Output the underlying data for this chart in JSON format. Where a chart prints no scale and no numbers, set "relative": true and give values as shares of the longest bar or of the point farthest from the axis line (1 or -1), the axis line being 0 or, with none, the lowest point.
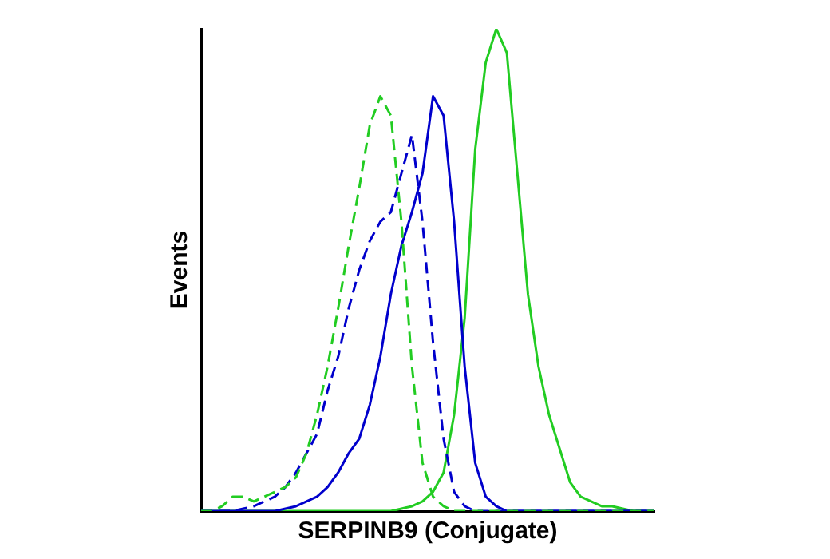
{
  "chart_data": {
    "type": "line",
    "relative": true,
    "xlabel": "SERPINB9 (Conjugate)",
    "ylabel": "Events",
    "categories": [
      null,
      null,
      null,
      null,
      null,
      null,
      null,
      null,
      null,
      null,
      null,
      null,
      null,
      null,
      null,
      null,
      null,
      null,
      null,
      null,
      null,
      null,
      null,
      null,
      null,
      null,
      null,
      null,
      null,
      null,
      null,
      null,
      null,
      null,
      null,
      null,
      null,
      null,
      null,
      null,
      null,
      null,
      null,
      null
    ],
    "grid": false,
    "legend": false,
    "marker": "none",
    "series": [
      {
        "color": "#22cc22",
        "line_style": "dashed",
        "values": [
          0,
          0,
          0.01,
          0.03,
          0.03,
          0.02,
          0.03,
          0.04,
          0.05,
          0.07,
          0.12,
          0.2,
          0.3,
          0.42,
          0.55,
          0.67,
          0.8,
          0.86,
          0.82,
          0.6,
          0.3,
          0.1,
          0.03,
          0.01,
          0,
          0,
          0,
          0,
          0,
          0,
          0,
          0,
          0,
          0,
          0,
          0,
          0,
          0,
          0,
          0,
          0,
          0,
          0,
          0
        ]
      },
      {
        "color": "#0000cc",
        "line_style": "dashed",
        "values": [
          0,
          0,
          0,
          0,
          0.005,
          0.01,
          0.02,
          0.03,
          0.05,
          0.08,
          0.12,
          0.16,
          0.25,
          0.32,
          0.42,
          0.5,
          0.56,
          0.6,
          0.62,
          0.7,
          0.78,
          0.6,
          0.35,
          0.15,
          0.04,
          0.01,
          0,
          0,
          0,
          0,
          0,
          0,
          0,
          0,
          0,
          0,
          0,
          0,
          0,
          0,
          0,
          0,
          0,
          0
        ]
      },
      {
        "color": "#0000cc",
        "line_style": "solid",
        "values": [
          0,
          0,
          0,
          0,
          0,
          0,
          0,
          0,
          0.005,
          0.01,
          0.02,
          0.03,
          0.05,
          0.08,
          0.12,
          0.15,
          0.22,
          0.32,
          0.45,
          0.55,
          0.62,
          0.7,
          0.86,
          0.82,
          0.6,
          0.3,
          0.1,
          0.03,
          0.01,
          0,
          0,
          0,
          0,
          0,
          0,
          0,
          0,
          0,
          0,
          0,
          0,
          0,
          0,
          0
        ]
      },
      {
        "color": "#22cc22",
        "line_style": "solid",
        "values": [
          0,
          0,
          0,
          0,
          0,
          0,
          0,
          0,
          0,
          0,
          0,
          0,
          0,
          0,
          0,
          0,
          0,
          0,
          0,
          0.005,
          0.01,
          0.02,
          0.04,
          0.08,
          0.2,
          0.4,
          0.75,
          0.93,
          1,
          0.95,
          0.7,
          0.45,
          0.3,
          0.2,
          0.13,
          0.06,
          0.03,
          0.02,
          0.01,
          0.01,
          0.005,
          0,
          0,
          0
        ]
      }
    ]
  }
}
